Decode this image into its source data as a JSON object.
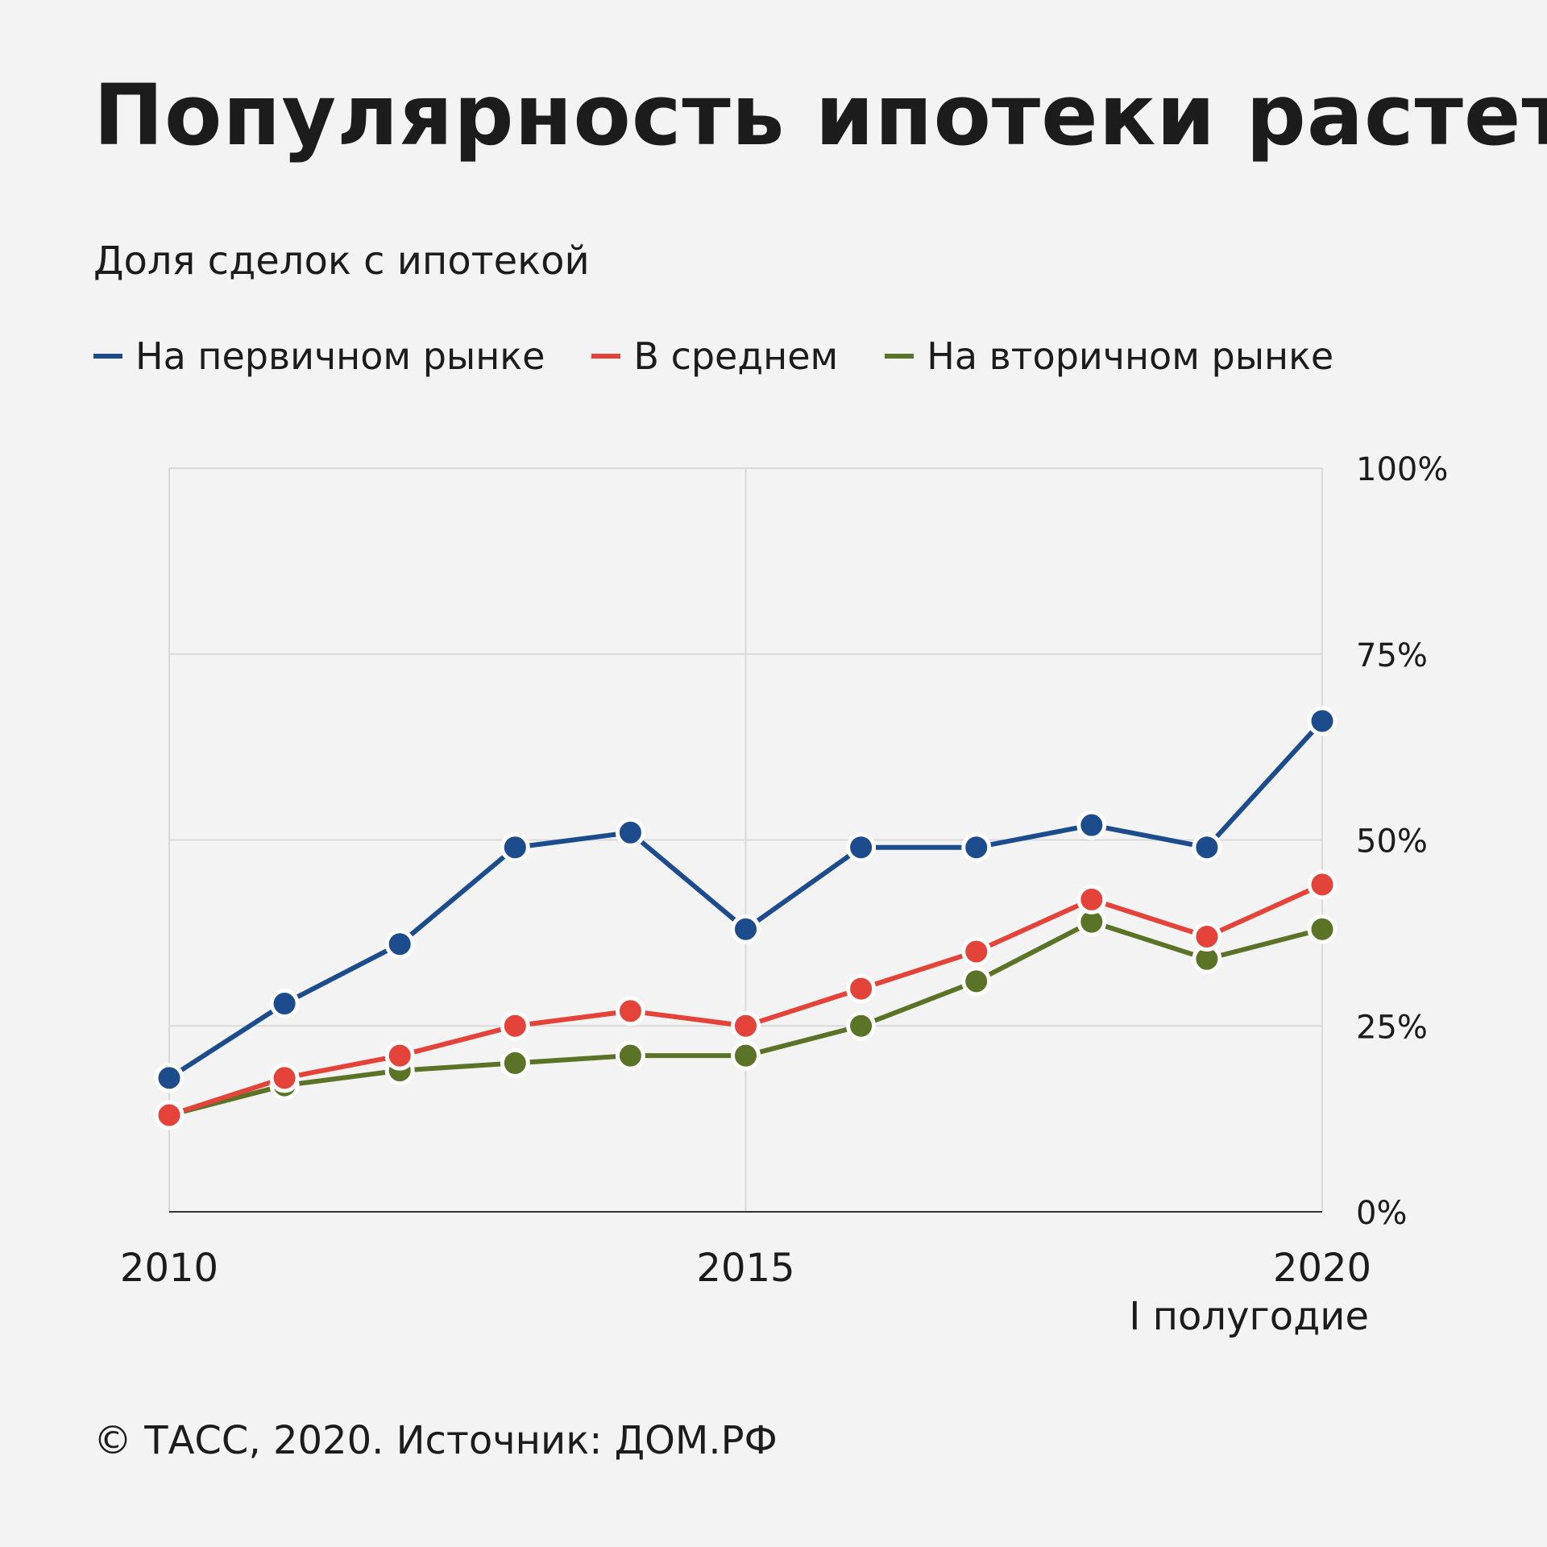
{
  "title": "Популярность ипотеки растет",
  "subtitle": "Доля сделок с ипотекой",
  "legend": [
    {
      "label": "На первичном рынке",
      "color": "#1d4c8c"
    },
    {
      "label": "В среднем",
      "color": "#e4433a"
    },
    {
      "label": "На вторичном рынке",
      "color": "#5a7327"
    }
  ],
  "footer": "© ТАСС, 2020. Источник: ДОМ.РФ",
  "chart_data": {
    "type": "line",
    "x": [
      2010,
      2011,
      2012,
      2013,
      2014,
      2015,
      2016,
      2017,
      2018,
      2019,
      2020
    ],
    "xlim": [
      2010,
      2020
    ],
    "x_ticks": [
      {
        "value": 2010,
        "label": "2010",
        "sublabel": ""
      },
      {
        "value": 2015,
        "label": "2015",
        "sublabel": ""
      },
      {
        "value": 2020,
        "label": "2020",
        "sublabel": "I полугодие"
      }
    ],
    "ylim": [
      0,
      100
    ],
    "y_ticks": [
      {
        "value": 0,
        "label": "0%"
      },
      {
        "value": 25,
        "label": "25%"
      },
      {
        "value": 50,
        "label": "50%"
      },
      {
        "value": 75,
        "label": "75%"
      },
      {
        "value": 100,
        "label": "100%"
      }
    ],
    "y_axis_position": "right",
    "grid": true,
    "legend_position": "top-left",
    "series": [
      {
        "name": "На первичном рынке",
        "color": "#1d4c8c",
        "values": [
          18,
          28,
          36,
          49,
          51,
          38,
          49,
          49,
          52,
          49,
          66
        ]
      },
      {
        "name": "В среднем",
        "color": "#e4433a",
        "values": [
          13,
          18,
          21,
          25,
          27,
          25,
          30,
          35,
          42,
          37,
          44
        ]
      },
      {
        "name": "На вторичном рынке",
        "color": "#5a7327",
        "values": [
          13,
          17,
          19,
          20,
          21,
          21,
          25,
          31,
          39,
          34,
          38
        ]
      }
    ]
  }
}
